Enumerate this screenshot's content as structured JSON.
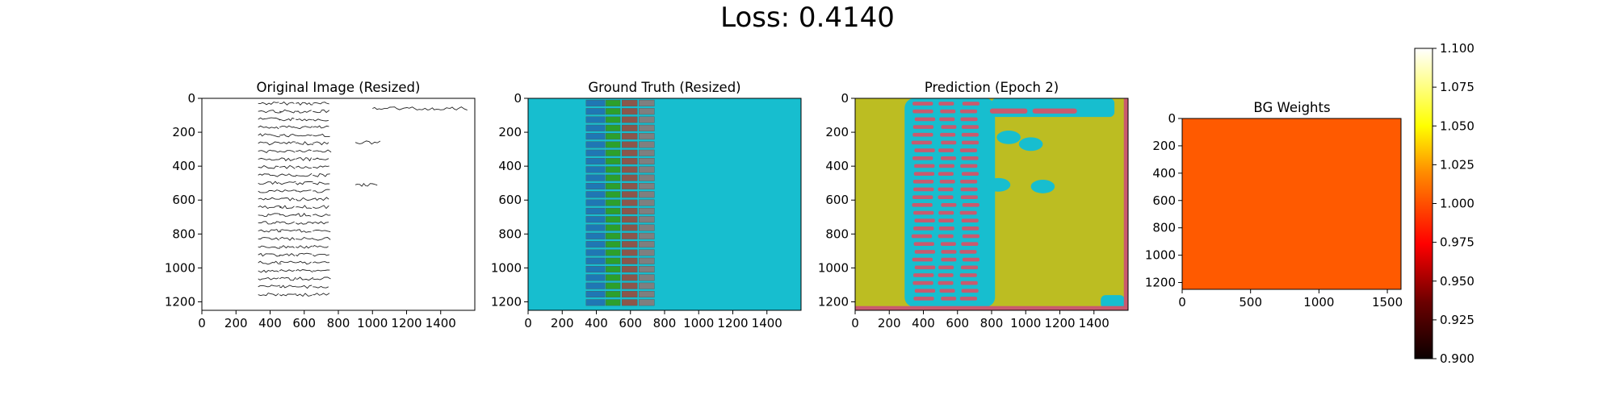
{
  "figure": {
    "suptitle": "Loss: 0.4140"
  },
  "panels": [
    {
      "id": "original",
      "title": "Original Image (Resized)"
    },
    {
      "id": "ground-truth",
      "title": "Ground Truth (Resized)"
    },
    {
      "id": "prediction",
      "title": "Prediction (Epoch 2)"
    },
    {
      "id": "bg-weights",
      "title": "BG Weights"
    }
  ],
  "colors": {
    "gt_background": "#17becf",
    "gt_col1": "#1f77b4",
    "gt_col2": "#2ca02c",
    "gt_col3": "#8c564b",
    "gt_col4": "#7f7f7f",
    "pred_background": "#bcbd22",
    "pred_text_region": "#17becf",
    "pred_cells": "#c95a6e",
    "bg_weight_fill": "#ff5a00"
  },
  "chart_data": [
    {
      "type": "heatmap",
      "title": "Original Image (Resized)",
      "image_width": 1600,
      "image_height": 1250,
      "x_ticks": [
        0,
        200,
        400,
        600,
        800,
        1000,
        1200,
        1400
      ],
      "y_ticks": [
        0,
        200,
        400,
        600,
        800,
        1000,
        1200
      ],
      "content": "scanned handwritten ledger page"
    },
    {
      "type": "heatmap",
      "title": "Ground Truth (Resized)",
      "image_width": 1600,
      "image_height": 1250,
      "x_ticks": [
        0,
        200,
        400,
        600,
        800,
        1000,
        1200,
        1400
      ],
      "y_ticks": [
        0,
        200,
        400,
        600,
        800,
        1000,
        1200
      ],
      "classes": [
        "background",
        "column-1",
        "column-2",
        "column-3",
        "column-4"
      ],
      "columns_x_range": [
        [
          340,
          450
        ],
        [
          455,
          540
        ],
        [
          550,
          640
        ],
        [
          650,
          740
        ]
      ],
      "row_count": 25
    },
    {
      "type": "heatmap",
      "title": "Prediction (Epoch 2)",
      "image_width": 1600,
      "image_height": 1250,
      "x_ticks": [
        0,
        200,
        400,
        600,
        800,
        1000,
        1200,
        1400
      ],
      "y_ticks": [
        0,
        200,
        400,
        600,
        800,
        1000,
        1200
      ]
    },
    {
      "type": "heatmap",
      "title": "BG Weights",
      "image_width": 1600,
      "image_height": 1250,
      "x_ticks": [
        0,
        500,
        1000,
        1500
      ],
      "y_ticks": [
        0,
        200,
        400,
        600,
        800,
        1000,
        1200
      ],
      "value": 1.0,
      "colormap": "hot",
      "colorbar": {
        "min": 0.9,
        "max": 1.1,
        "ticks": [
          "0.900",
          "0.925",
          "0.950",
          "0.975",
          "1.000",
          "1.025",
          "1.050",
          "1.075",
          "1.100"
        ]
      }
    }
  ]
}
